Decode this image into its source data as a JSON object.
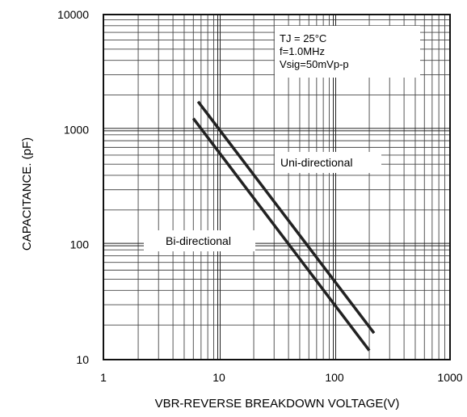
{
  "chart_data": {
    "type": "line",
    "title": "",
    "xlabel": "VBR-REVERSE BREAKDOWN VOLTAGE(V)",
    "ylabel": "CAPACITANCE. (pF)",
    "x_scale": "log",
    "y_scale": "log",
    "xlim": [
      1,
      1000
    ],
    "ylim": [
      10,
      10000
    ],
    "x_ticks": [
      "1",
      "10",
      "100",
      "1000"
    ],
    "y_ticks": [
      "10",
      "100",
      "1000",
      "10000"
    ],
    "grid": true,
    "conditions": [
      "TJ = 25°C",
      "f=1.0MHz",
      "Vsig=50mVp-p"
    ],
    "series": [
      {
        "name": "Uni-directional",
        "x": [
          6.6,
          220
        ],
        "y": [
          1750,
          17
        ],
        "color": "#222222"
      },
      {
        "name": "Bi-directional",
        "x": [
          6.0,
          200
        ],
        "y": [
          1250,
          12
        ],
        "color": "#222222"
      }
    ]
  }
}
